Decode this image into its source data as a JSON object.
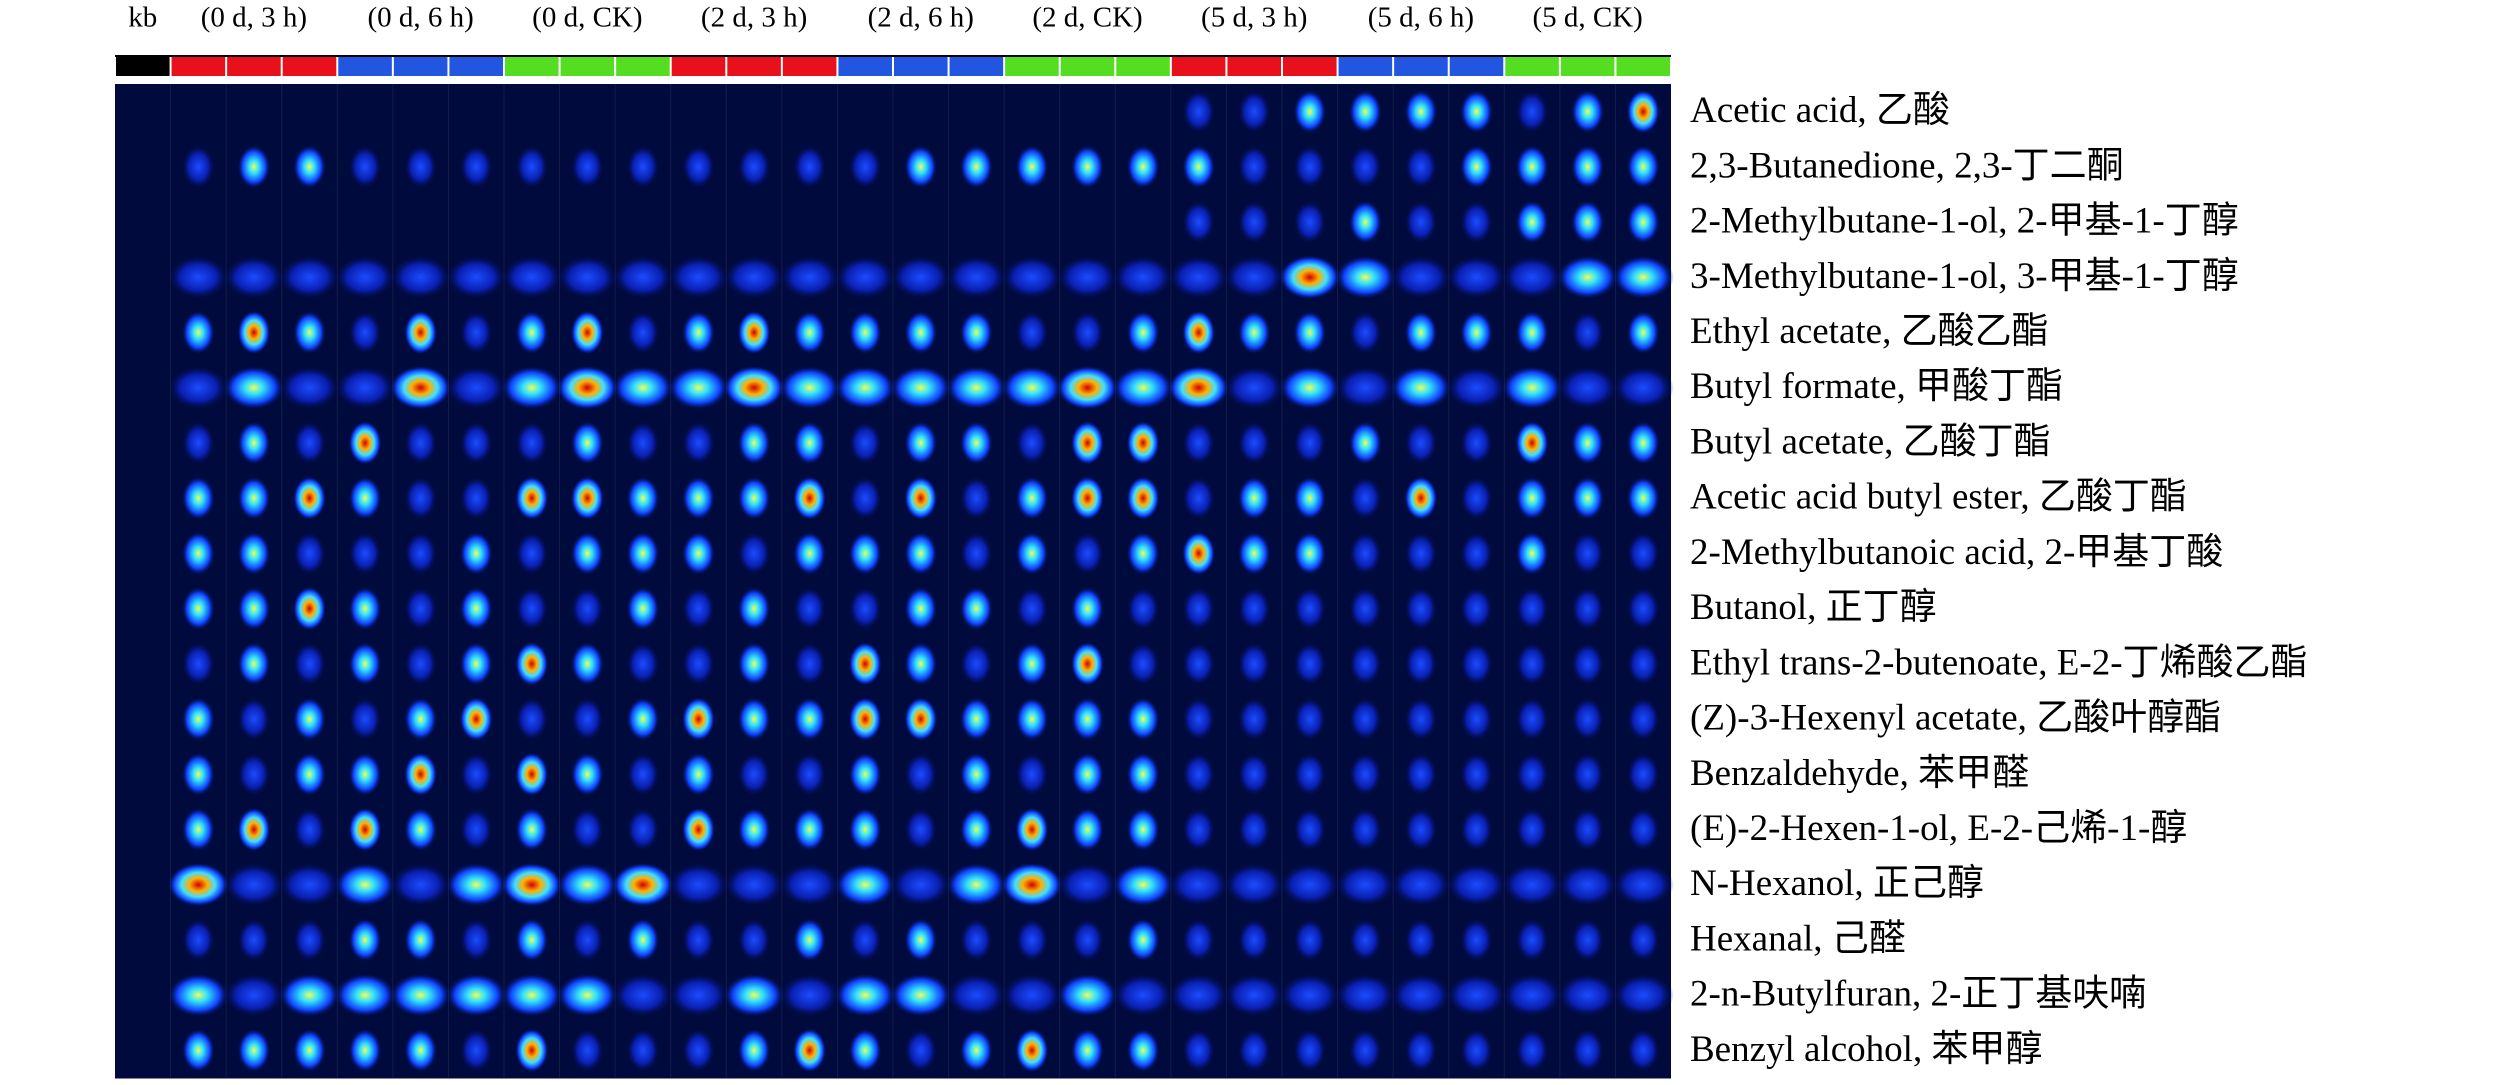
{
  "header": {
    "columns": [
      "kb",
      "(0 d, 3 h)",
      "(0 d, 6 h)",
      "(0 d, CK)",
      "(2 d, 3 h)",
      "(2 d, 6 h)",
      "(2 d, CK)",
      "(5 d, 3 h)",
      "(5 d, 6 h)",
      "(5 d, CK)"
    ]
  },
  "rows": [
    "Acetic acid, 乙酸",
    "2,3-Butanedione, 2,3-丁二酮",
    "2-Methylbutane-1-ol, 2-甲基-1-丁醇",
    "3-Methylbutane-1-ol, 3-甲基-1-丁醇",
    "Ethyl acetate, 乙酸乙酯",
    "Butyl formate, 甲酸丁酯",
    "Butyl acetate, 乙酸丁酯",
    "Acetic acid butyl ester, 乙酸丁酯",
    "2-Methylbutanoic acid, 2-甲基丁酸",
    "Butanol, 正丁醇",
    "Ethyl trans-2-butenoate, E-2-丁烯酸乙酯",
    "(Z)-3-Hexenyl acetate, 乙酸叶醇酯",
    "Benzaldehyde, 苯甲醛",
    "(E)-2-Hexen-1-ol, E-2-己烯-1-醇",
    "N-Hexanol, 正己醇",
    "Hexanal, 己醛",
    "2-n-Butylfuran, 2-正丁基呋喃",
    "Benzyl alcohol, 苯甲醇"
  ]
}
